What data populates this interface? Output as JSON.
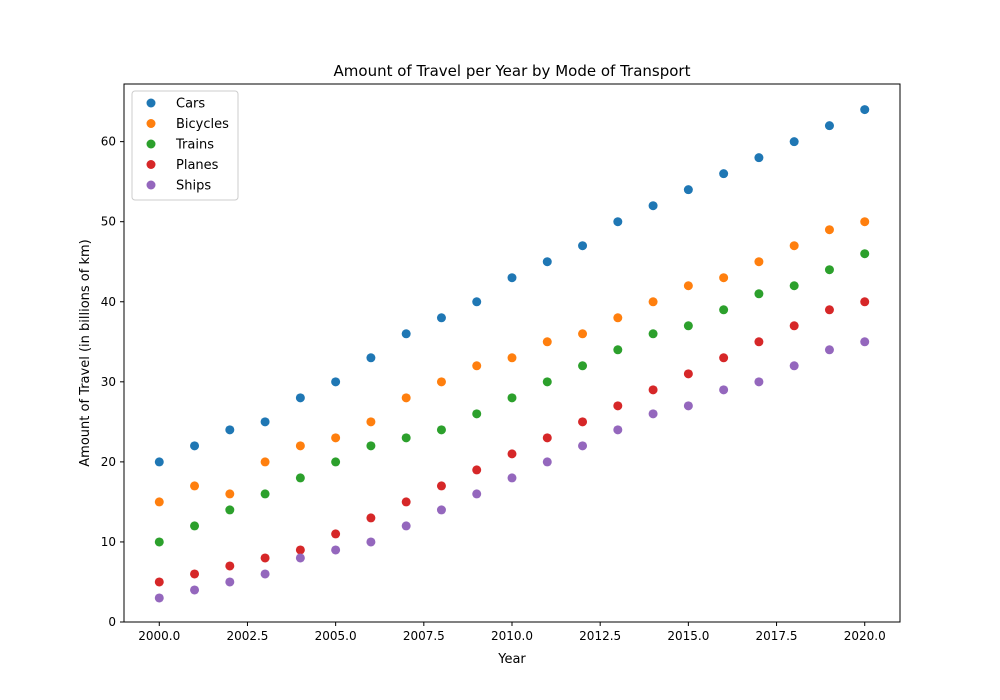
{
  "chart_data": {
    "type": "scatter",
    "title": "Amount of Travel per Year by Mode of Transport",
    "xlabel": "Year",
    "ylabel": "Amount of Travel (in billions of km)",
    "xlim": [
      1999.0,
      2021.0
    ],
    "ylim": [
      0,
      67.2
    ],
    "xticks": [
      2000.0,
      2002.5,
      2005.0,
      2007.5,
      2010.0,
      2012.5,
      2015.0,
      2017.5,
      2020.0
    ],
    "xtick_labels": [
      "2000.0",
      "2002.5",
      "2005.0",
      "2007.5",
      "2010.0",
      "2012.5",
      "2015.0",
      "2017.5",
      "2020.0"
    ],
    "yticks": [
      0,
      10,
      20,
      30,
      40,
      50,
      60
    ],
    "ytick_labels": [
      "0",
      "10",
      "20",
      "30",
      "40",
      "50",
      "60"
    ],
    "grid": false,
    "legend_position": "top-left",
    "x": [
      2000,
      2001,
      2002,
      2003,
      2004,
      2005,
      2006,
      2007,
      2008,
      2009,
      2010,
      2011,
      2012,
      2013,
      2014,
      2015,
      2016,
      2017,
      2018,
      2019,
      2020
    ],
    "series": [
      {
        "name": "Cars",
        "color": "#1f77b4",
        "values": [
          20,
          22,
          24,
          25,
          28,
          30,
          33,
          36,
          38,
          40,
          43,
          45,
          47,
          50,
          52,
          54,
          56,
          58,
          60,
          62,
          64
        ]
      },
      {
        "name": "Bicycles",
        "color": "#ff7f0e",
        "values": [
          15,
          17,
          16,
          20,
          22,
          23,
          25,
          28,
          30,
          32,
          33,
          35,
          36,
          38,
          40,
          42,
          43,
          45,
          47,
          49,
          50
        ]
      },
      {
        "name": "Trains",
        "color": "#2ca02c",
        "values": [
          10,
          12,
          14,
          16,
          18,
          20,
          22,
          23,
          24,
          26,
          28,
          30,
          32,
          34,
          36,
          37,
          39,
          41,
          42,
          44,
          46
        ]
      },
      {
        "name": "Planes",
        "color": "#d62728",
        "values": [
          5,
          6,
          7,
          8,
          9,
          11,
          13,
          15,
          17,
          19,
          21,
          23,
          25,
          27,
          29,
          31,
          33,
          35,
          37,
          39,
          40
        ]
      },
      {
        "name": "Ships",
        "color": "#9467bd",
        "values": [
          3,
          4,
          5,
          6,
          8,
          9,
          10,
          12,
          14,
          16,
          18,
          20,
          22,
          24,
          26,
          27,
          29,
          30,
          32,
          34,
          35
        ]
      }
    ]
  }
}
